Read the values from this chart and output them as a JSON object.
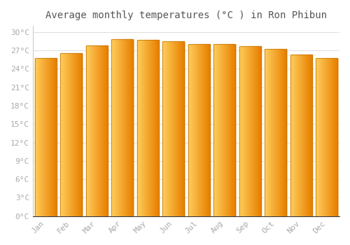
{
  "title": "Average monthly temperatures (°C ) in Ron Phibun",
  "months": [
    "Jan",
    "Feb",
    "Mar",
    "Apr",
    "May",
    "Jun",
    "Jul",
    "Aug",
    "Sep",
    "Oct",
    "Nov",
    "Dec"
  ],
  "temperatures": [
    25.8,
    26.6,
    27.8,
    28.8,
    28.7,
    28.5,
    28.0,
    28.1,
    27.7,
    27.3,
    26.3,
    25.8
  ],
  "bar_color_left": "#FFD060",
  "bar_color_right": "#E88000",
  "bar_color_edge": "#C07000",
  "background_color": "#ffffff",
  "grid_color": "#dddddd",
  "ylim": [
    0,
    31
  ],
  "yticks": [
    0,
    3,
    6,
    9,
    12,
    15,
    18,
    21,
    24,
    27,
    30
  ],
  "ytick_labels": [
    "0°C",
    "3°C",
    "6°C",
    "9°C",
    "12°C",
    "15°C",
    "18°C",
    "21°C",
    "24°C",
    "27°C",
    "30°C"
  ],
  "title_fontsize": 10,
  "tick_fontsize": 8,
  "font_color": "#aaaaaa",
  "bar_width": 0.85
}
